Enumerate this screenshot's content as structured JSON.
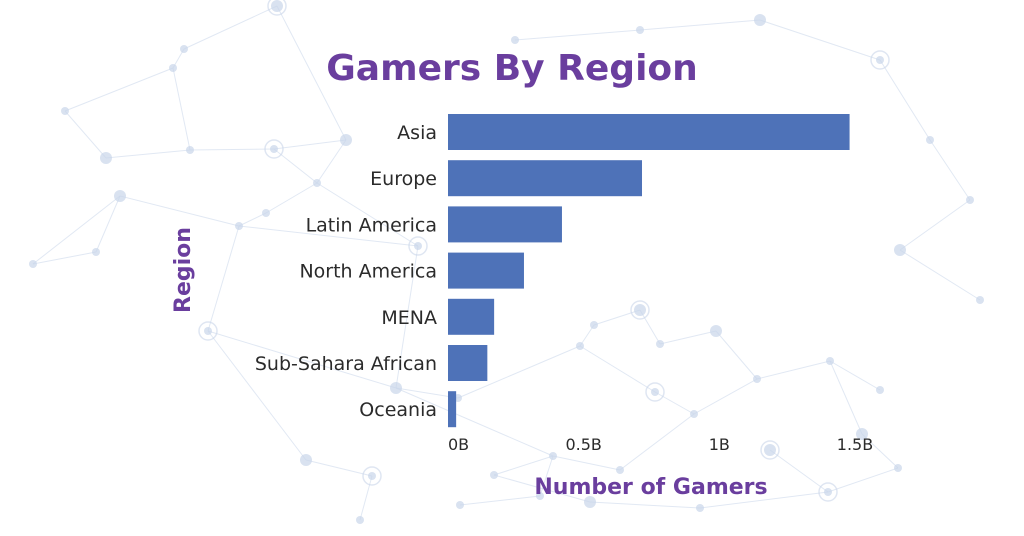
{
  "chart_data": {
    "type": "bar",
    "orientation": "horizontal",
    "title": "Gamers By Region",
    "xlabel": "Number of Gamers",
    "ylabel": "Region",
    "categories": [
      "Asia",
      "Europe",
      "Latin America",
      "North America",
      "MENA",
      "Sub-Sahara African",
      "Oceania"
    ],
    "values": [
      1.48,
      0.715,
      0.42,
      0.28,
      0.17,
      0.145,
      0.03
    ],
    "unit": "B",
    "xlim": [
      0,
      1.5
    ],
    "xticks": [
      {
        "value": 0,
        "label": "0B"
      },
      {
        "value": 0.5,
        "label": "0.5B"
      },
      {
        "value": 1,
        "label": "1B"
      },
      {
        "value": 1.5,
        "label": "1.5B"
      }
    ],
    "grid": false,
    "legend": "none",
    "colors": {
      "bar": "#4e72b8",
      "title": "#6a3e9e",
      "text": "#2b2b2b",
      "background_network": "#c9d6ea"
    }
  }
}
